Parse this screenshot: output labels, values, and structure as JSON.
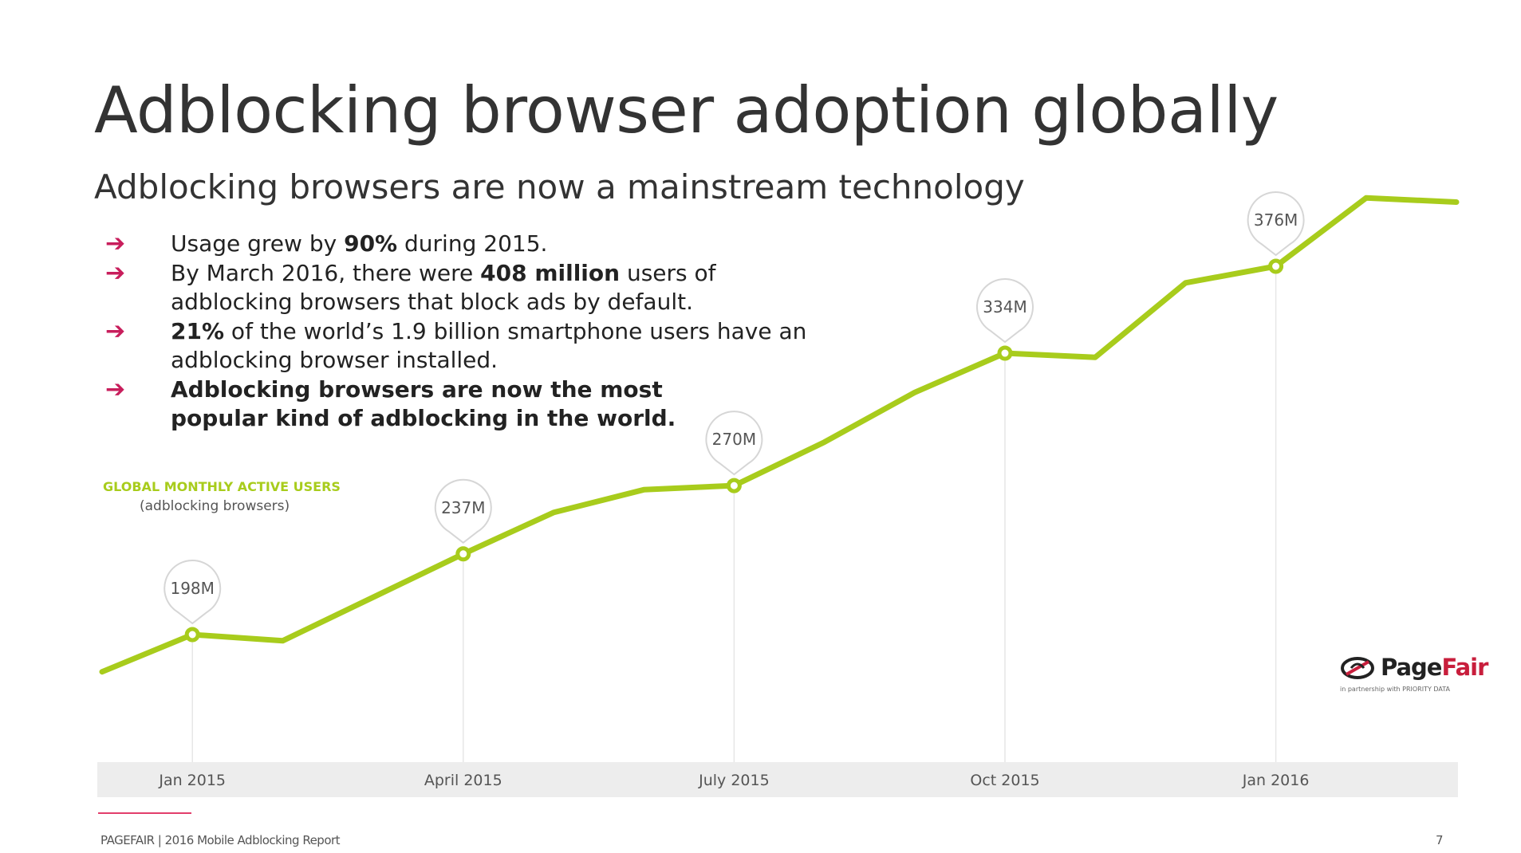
{
  "slide": {
    "title": "Adblocking browser adoption globally",
    "subtitle": "Adblocking browsers are now a mainstream technology",
    "bullets": [
      {
        "pre": "Usage grew by ",
        "bold": "90%",
        "post": " during 2015."
      },
      {
        "pre": "By March 2016, there were ",
        "bold": "408 million",
        "post": " users of adblocking browsers that block ads by default."
      },
      {
        "pre": "",
        "bold": "21%",
        "post": " of the world’s 1.9 billion smartphone users have an adblocking browser installed."
      },
      {
        "pre": "",
        "bold": "Adblocking browsers are now the most popular kind of adblocking in the world.",
        "post": ""
      }
    ],
    "bullet_icon": "arrow-right-icon",
    "accent_color": "#c81e5c"
  },
  "chart_data": {
    "type": "line",
    "metric_title": "GLOBAL MONTHLY ACTIVE USERS",
    "metric_subtitle": "(adblocking browsers)",
    "line_color": "#a8cc1c",
    "x_labels": [
      "Jan 2015",
      "April 2015",
      "July 2015",
      "Oct 2015",
      "Jan 2016"
    ],
    "series": [
      {
        "points": [
          {
            "m": 0,
            "v": 180
          },
          {
            "m": 1,
            "v": 198
          },
          {
            "m": 2,
            "v": 195
          },
          {
            "m": 3,
            "v": 216
          },
          {
            "m": 4,
            "v": 237
          },
          {
            "m": 5,
            "v": 257
          },
          {
            "m": 6,
            "v": 268
          },
          {
            "m": 7,
            "v": 270
          },
          {
            "m": 8,
            "v": 291
          },
          {
            "m": 9,
            "v": 315
          },
          {
            "m": 10,
            "v": 334
          },
          {
            "m": 11,
            "v": 332
          },
          {
            "m": 12,
            "v": 368
          },
          {
            "m": 13,
            "v": 376
          },
          {
            "m": 14,
            "v": 409
          },
          {
            "m": 15,
            "v": 407
          }
        ]
      }
    ],
    "callouts": [
      {
        "m": 1,
        "v": 198,
        "label": "198M"
      },
      {
        "m": 4,
        "v": 237,
        "label": "237M"
      },
      {
        "m": 7,
        "v": 270,
        "label": "270M"
      },
      {
        "m": 10,
        "v": 334,
        "label": "334M"
      },
      {
        "m": 13,
        "v": 376,
        "label": "376M"
      }
    ],
    "x_tick_months": [
      1,
      4,
      7,
      10,
      13
    ],
    "vertical_guides": true
  },
  "logo": {
    "name_part1": "Page",
    "name_part2": "Fair",
    "tagline": "in partnership with PRIORITY DATA",
    "icon": "pagefair-logo-icon"
  },
  "footer": {
    "text": "PAGEFAIR | 2016 Mobile Adblocking Report",
    "page_number": "7"
  }
}
